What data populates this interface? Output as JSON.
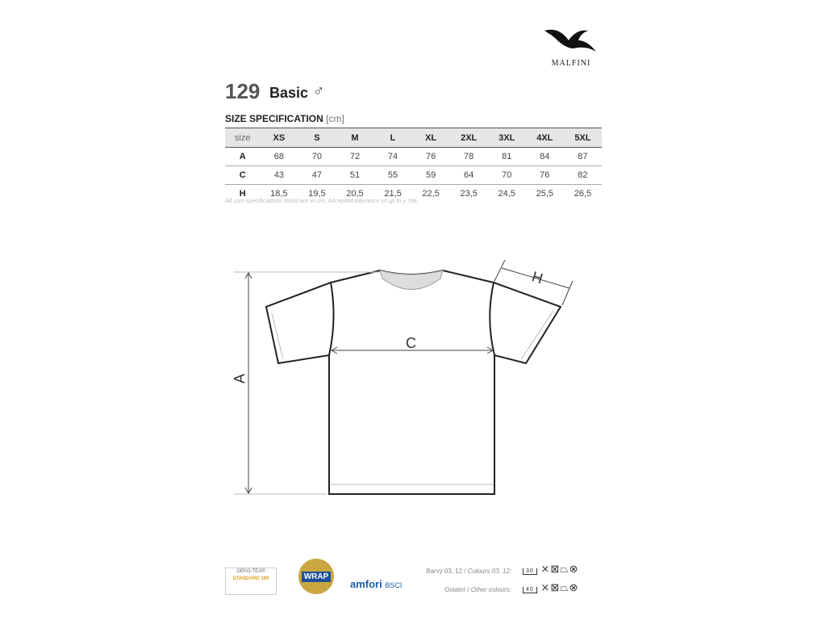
{
  "brand": {
    "logo_text": "MALFINI"
  },
  "product": {
    "model": "129",
    "name": "Basic",
    "gender_symbol": "♂"
  },
  "spec": {
    "title": "SIZE SPECIFICATION",
    "unit": "[cm]"
  },
  "table": {
    "headers": [
      "size",
      "XS",
      "S",
      "M",
      "L",
      "XL",
      "2XL",
      "3XL",
      "4XL",
      "5XL"
    ],
    "rows": [
      {
        "label": "A",
        "values": [
          "68",
          "70",
          "72",
          "74",
          "76",
          "78",
          "81",
          "84",
          "87"
        ]
      },
      {
        "label": "C",
        "values": [
          "43",
          "47",
          "51",
          "55",
          "59",
          "64",
          "70",
          "76",
          "82"
        ]
      },
      {
        "label": "H",
        "values": [
          "18,5",
          "19,5",
          "20,5",
          "21,5",
          "22,5",
          "23,5",
          "24,5",
          "25,5",
          "26,5"
        ]
      }
    ]
  },
  "note": "All size specifications listed are in cm. Accepted tolerance of up to ± 5%.",
  "diagram": {
    "labels": {
      "A": "A",
      "C": "C",
      "H": "H"
    }
  },
  "certifications": {
    "oeko": "OEKO-TEX®",
    "oeko_std": "STANDARD 100",
    "wrap": "WRAP",
    "amfori": "amfori",
    "bsci": "BSCI"
  },
  "colours": {
    "row1": {
      "cz": "Barvy 03, 12 /",
      "en": "Colours 03, 12:",
      "wash_temp": "30"
    },
    "row2": {
      "cz": "Ostatní /",
      "en": "Other colours:",
      "wash_temp": "40"
    }
  }
}
